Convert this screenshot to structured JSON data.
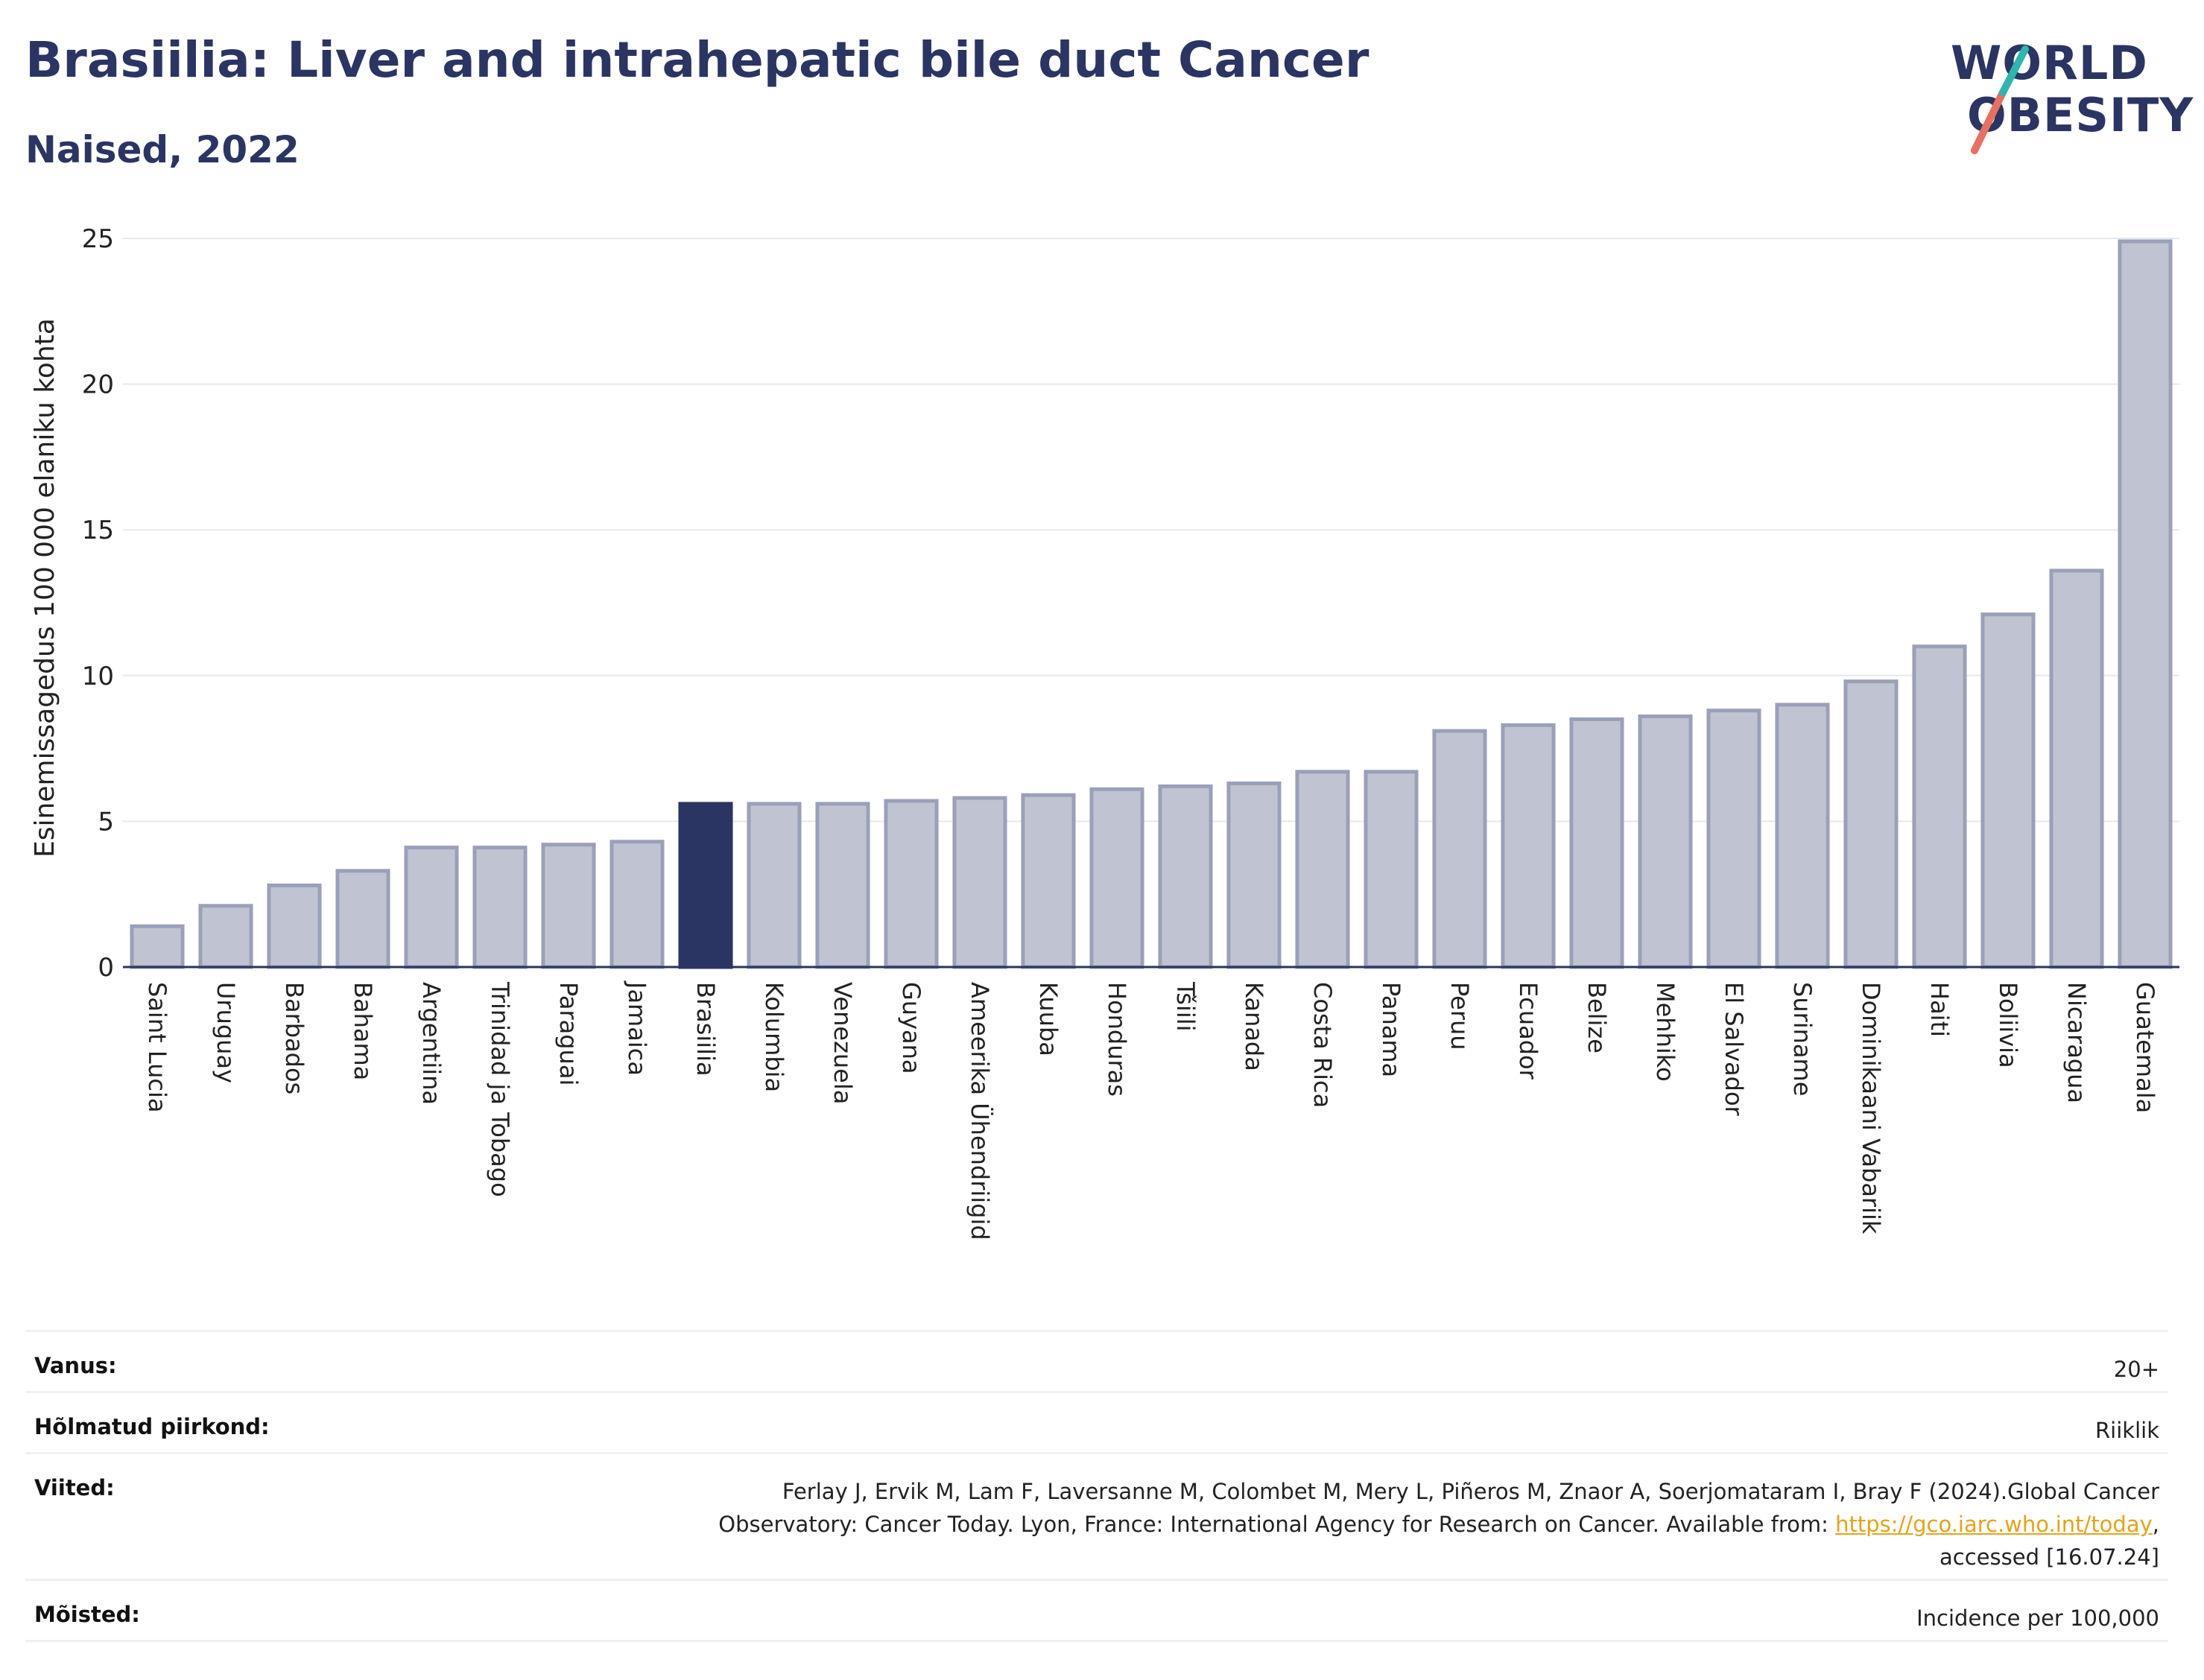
{
  "header": {
    "title": "Brasiilia: Liver and intrahepatic bile duct Cancer",
    "subtitle": "Naised, 2022"
  },
  "logo": {
    "line1": "WORLD",
    "line2": "OBESITY",
    "colors": {
      "text": "#2b3563",
      "teal": "#2bb6b0",
      "coral": "#e8705e"
    }
  },
  "chart_data": {
    "type": "bar",
    "ylabel": "Esinemissagedus 100 000 elaniku kohta",
    "ylim": [
      0,
      25
    ],
    "yticks": [
      0,
      5,
      10,
      15,
      20,
      25
    ],
    "grid": true,
    "highlight": "Brasiilia",
    "colors": {
      "bar": "#c0c4d2",
      "bar_edge": "#9aa0b8",
      "highlight": "#2b3563"
    },
    "categories": [
      "Saint Lucia",
      "Uruguay",
      "Barbados",
      "Bahama",
      "Argentiina",
      "Trinidad ja Tobago",
      "Paraguai",
      "Jamaica",
      "Brasiilia",
      "Kolumbia",
      "Venezuela",
      "Guyana",
      "Ameerika Ühendriigid",
      "Kuuba",
      "Honduras",
      "Tšiili",
      "Kanada",
      "Costa Rica",
      "Panama",
      "Peruu",
      "Ecuador",
      "Belize",
      "Mehhiko",
      "El Salvador",
      "Suriname",
      "Dominikaani Vabariik",
      "Haiti",
      "Boliivia",
      "Nicaragua",
      "Guatemala"
    ],
    "values": [
      1.4,
      2.1,
      2.8,
      3.3,
      4.1,
      4.1,
      4.2,
      4.3,
      5.6,
      5.6,
      5.6,
      5.7,
      5.8,
      5.9,
      6.1,
      6.2,
      6.3,
      6.7,
      6.7,
      8.1,
      8.3,
      8.5,
      8.6,
      8.8,
      9.0,
      9.8,
      11.0,
      12.1,
      13.6,
      24.9
    ]
  },
  "info": {
    "rows": [
      {
        "key": "Vanus:",
        "value": "20+"
      },
      {
        "key": "Hõlmatud piirkond:",
        "value": "Riiklik"
      },
      {
        "key": "Viited:",
        "value_line1": "Ferlay J, Ervik M, Lam F, Laversanne M, Colombet M, Mery L, Piñeros M, Znaor A, Soerjomataram I, Bray F (2024).Global Cancer",
        "value_line2": "Observatory: Cancer Today. Lyon, France: International Agency for Research on Cancer. Available from: ",
        "link": "https://gco.iarc.who.int/today",
        "value_line2_end": ",",
        "value_line3": "accessed [16.07.24]"
      },
      {
        "key": "Mõisted:",
        "value": "Incidence per 100,000"
      }
    ]
  }
}
